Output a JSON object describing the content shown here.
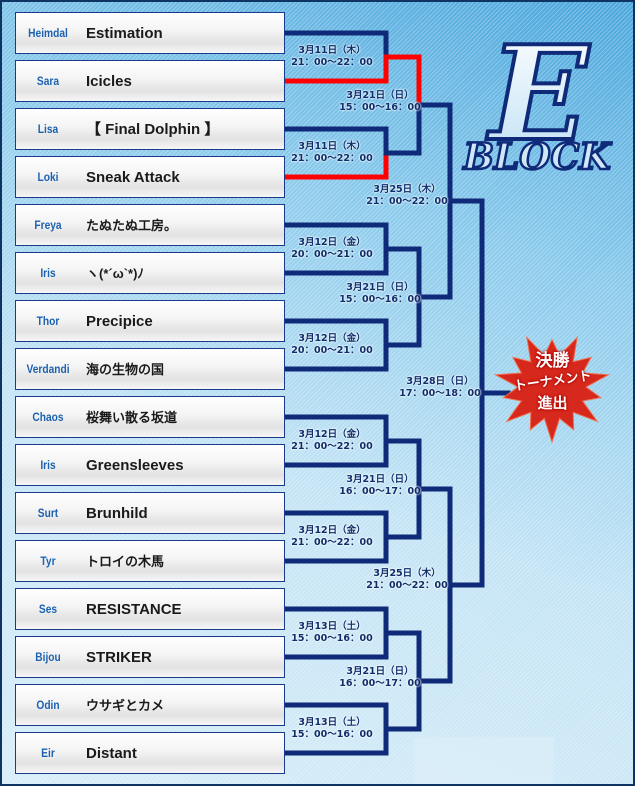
{
  "block_logo": {
    "letter": "E",
    "word": "BLOCK"
  },
  "final_badge": {
    "line1": "決勝",
    "line2": "トーナメント",
    "line3": "進出",
    "color": "#d6281c"
  },
  "colors": {
    "line": "#0f2a78",
    "winner_line": "#ff0000",
    "player": "#1d62b0"
  },
  "entries": [
    {
      "player": "Heimdal",
      "team": "Estimation"
    },
    {
      "player": "Sara",
      "team": "Icicles",
      "advanced_rounds": 2
    },
    {
      "player": "Lisa",
      "team": "【 Final Dolphin 】"
    },
    {
      "player": "Loki",
      "team": "Sneak Attack",
      "advanced_rounds": 1
    },
    {
      "player": "Freya",
      "team": "たぬたぬ工房。"
    },
    {
      "player": "Iris",
      "team": "ヽ(*´ω`*)ﾉ"
    },
    {
      "player": "Thor",
      "team": "Precipice"
    },
    {
      "player": "Verdandi",
      "team": "海の生物の国"
    },
    {
      "player": "Chaos",
      "team": "桜舞い散る坂道"
    },
    {
      "player": "Iris",
      "team": "Greensleeves"
    },
    {
      "player": "Surt",
      "team": "Brunhild"
    },
    {
      "player": "Tyr",
      "team": "トロイの木馬"
    },
    {
      "player": "Ses",
      "team": "RESISTANCE"
    },
    {
      "player": "Bijou",
      "team": "STRIKER"
    },
    {
      "player": "Odin",
      "team": "ウサギとカメ"
    },
    {
      "player": "Eir",
      "team": "Distant"
    }
  ],
  "rounds": [
    [
      {
        "date": "3月11日（木）",
        "time": "21：00～22：00"
      },
      {
        "date": "3月11日（木）",
        "time": "21：00～22：00"
      },
      {
        "date": "3月12日（金）",
        "time": "20：00～21：00"
      },
      {
        "date": "3月12日（金）",
        "time": "20：00～21：00"
      },
      {
        "date": "3月12日（金）",
        "time": "21：00～22：00"
      },
      {
        "date": "3月12日（金）",
        "time": "21：00～22：00"
      },
      {
        "date": "3月13日（土）",
        "time": "15：00～16：00"
      },
      {
        "date": "3月13日（土）",
        "time": "15：00～16：00"
      }
    ],
    [
      {
        "date": "3月21日（日）",
        "time": "15：00～16：00"
      },
      {
        "date": "3月21日（日）",
        "time": "15：00～16：00"
      },
      {
        "date": "3月21日（日）",
        "time": "16：00～17：00"
      },
      {
        "date": "3月21日（日）",
        "time": "16：00～17：00"
      }
    ],
    [
      {
        "date": "3月25日（木）",
        "time": "21：00～22：00"
      },
      {
        "date": "3月25日（木）",
        "time": "21：00～22：00"
      }
    ],
    [
      {
        "date": "3月28日（日）",
        "time": "17：00～18：00"
      }
    ]
  ]
}
